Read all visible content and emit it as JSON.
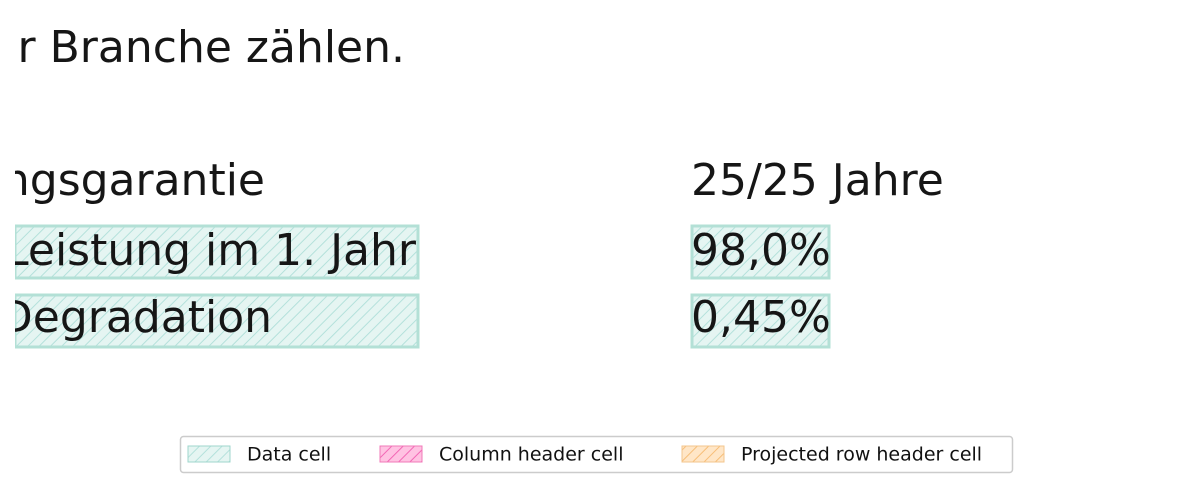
{
  "document": {
    "text": "r Branche zählen.",
    "table": {
      "rows": [
        [
          "ngsgarantie",
          "25/25 Jahre"
        ],
        [
          "Leistung im 1. Jahr",
          "98,0%"
        ],
        [
          "Degradation",
          "0,45%"
        ]
      ]
    }
  },
  "legend": [
    "Data cell",
    "Column header cell",
    "Projected row header cell"
  ]
}
